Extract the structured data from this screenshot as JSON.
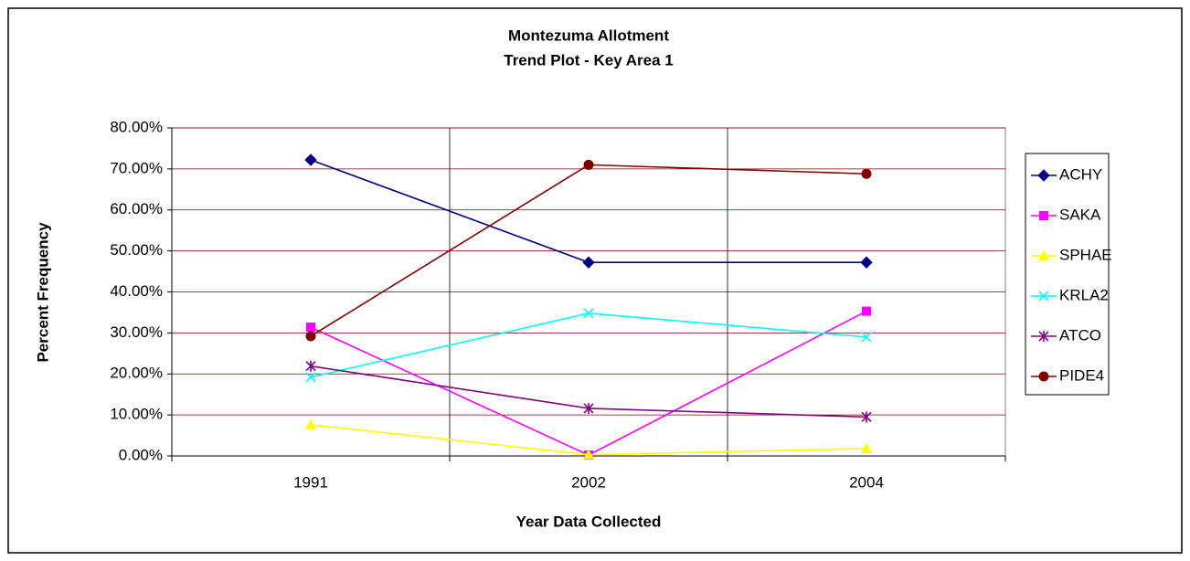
{
  "chart_data": {
    "type": "line",
    "title": "Montezuma Allotment",
    "subtitle": "Trend Plot - Key Area 1",
    "x_label": "Year Data Collected",
    "y_label": "Percent Frequency",
    "categories": [
      "1991",
      "2002",
      "2004"
    ],
    "series": [
      {
        "name": "ACHY",
        "color": "#000080",
        "marker": "diamond",
        "values": [
          72.2,
          47.2,
          47.2
        ]
      },
      {
        "name": "SAKA",
        "color": "#ff00ff",
        "marker": "square",
        "values": [
          31.4,
          0.2,
          35.3
        ]
      },
      {
        "name": "SPHAE",
        "color": "#ffff00",
        "marker": "triangle",
        "values": [
          7.6,
          0.3,
          1.8
        ]
      },
      {
        "name": "KRLA2",
        "color": "#00ffff",
        "marker": "x",
        "values": [
          19.2,
          34.8,
          29.0
        ]
      },
      {
        "name": "ATCO",
        "color": "#800080",
        "marker": "asterisk",
        "values": [
          21.9,
          11.6,
          9.5
        ]
      },
      {
        "name": "PIDE4",
        "color": "#800000",
        "marker": "circle",
        "values": [
          29.2,
          71.0,
          68.8
        ]
      }
    ],
    "ylim": [
      0,
      80
    ],
    "yticks": [
      {
        "value": 0,
        "label": "0.00%"
      },
      {
        "value": 10,
        "label": "10.00%"
      },
      {
        "value": 20,
        "label": "20.00%"
      },
      {
        "value": 30,
        "label": "30.00%"
      },
      {
        "value": 40,
        "label": "40.00%"
      },
      {
        "value": 50,
        "label": "50.00%"
      },
      {
        "value": 60,
        "label": "60.00%"
      },
      {
        "value": 70,
        "label": "70.00%"
      },
      {
        "value": 80,
        "label": "80.00%"
      }
    ],
    "grid": true,
    "legend": "right"
  }
}
